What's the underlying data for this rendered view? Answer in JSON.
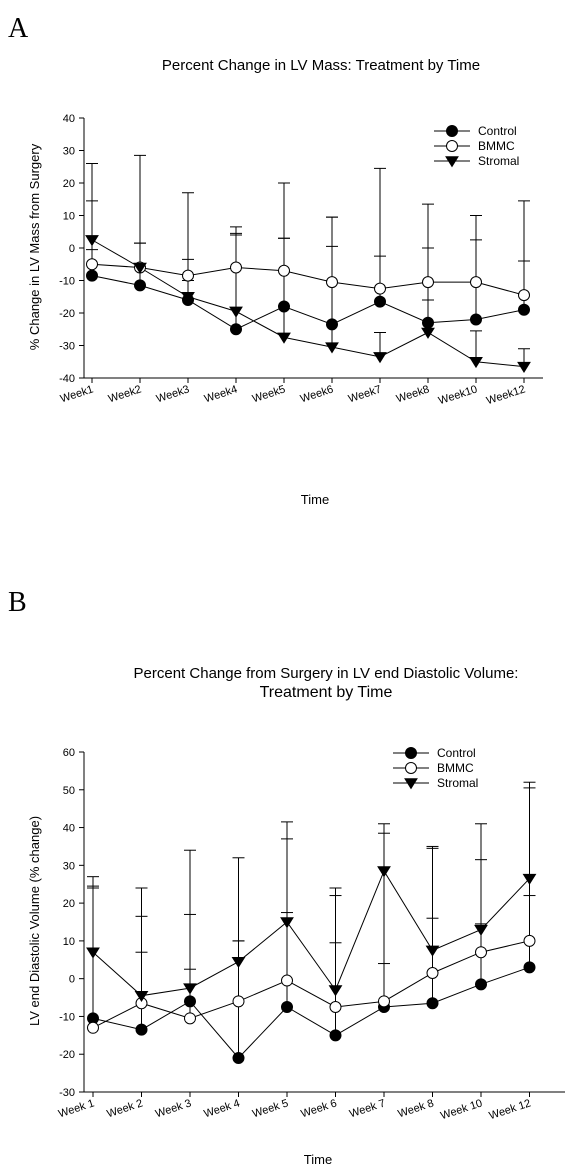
{
  "panels": [
    {
      "letter": "A"
    },
    {
      "letter": "B"
    }
  ],
  "chart_data": [
    {
      "type": "line",
      "title": "Percent Change in LV Mass: Treatment by Time",
      "xlabel": "Time",
      "ylabel": "% Change in LV Mass from Surgery",
      "categories": [
        "Week1",
        "Week2",
        "Week3",
        "Week4",
        "Week5",
        "Week6",
        "Week7",
        "Week8",
        "Week10",
        "Week12"
      ],
      "ylim": [
        -40,
        40
      ],
      "yticks": [
        -40,
        -30,
        -20,
        -10,
        0,
        10,
        20,
        30,
        40
      ],
      "grid": false,
      "legend_position": "top-right",
      "series": [
        {
          "name": "Control",
          "marker": "filled-circle",
          "values": [
            -8.5,
            -11.5,
            -16,
            -25,
            -18,
            -23.5,
            -16.5,
            -23,
            -22,
            -19
          ],
          "error_upper": [
            14.5,
            1.5,
            -10,
            4.5,
            3,
            0.5,
            -2.5,
            0,
            2.5,
            -4
          ]
        },
        {
          "name": "BMMC",
          "marker": "open-circle",
          "values": [
            -5,
            -6,
            -8.5,
            -6,
            -7,
            -10.5,
            -12.5,
            -10.5,
            -10.5,
            -14.5
          ],
          "error_upper": [
            -0.5,
            1.5,
            -3.5,
            6.5,
            3,
            9.5,
            24.5,
            13.5,
            10,
            14.5
          ]
        },
        {
          "name": "Stromal",
          "marker": "filled-triangle-down",
          "values": [
            2.5,
            -6,
            -15,
            -19.5,
            -27.5,
            -30.5,
            -33.5,
            -26,
            -35,
            -36.5
          ],
          "error_upper": [
            26,
            28.5,
            17,
            4,
            20,
            9.5,
            -26,
            -16,
            -25.5,
            -31
          ]
        }
      ]
    },
    {
      "type": "line",
      "title": "Percent Change from Surgery in LV end Diastolic Volume:",
      "subtitle": "Treatment by Time",
      "xlabel": "Time",
      "ylabel": "LV end Diastolic Volume  (% change)",
      "categories": [
        "Week 1",
        "Week 2",
        "Week 3",
        "Week 4",
        "Week 5",
        "Week 6",
        "Week 7",
        "Week 8",
        "Week 10",
        "Week 12"
      ],
      "ylim": [
        -30,
        60
      ],
      "yticks": [
        -30,
        -20,
        -10,
        0,
        10,
        20,
        30,
        40,
        50,
        60
      ],
      "grid": false,
      "legend_position": "top-right",
      "series": [
        {
          "name": "Control",
          "marker": "filled-circle",
          "values": [
            -10.5,
            -13.5,
            -6,
            -21,
            -7.5,
            -15,
            -7.5,
            -6.5,
            -1.5,
            3
          ],
          "error_upper": [
            24,
            7,
            2.5,
            10,
            17.5,
            9.5,
            4,
            16,
            14.5,
            22
          ]
        },
        {
          "name": "BMMC",
          "marker": "open-circle",
          "values": [
            -13,
            -6.5,
            -10.5,
            -6,
            -0.5,
            -7.5,
            -6,
            1.5,
            7,
            10
          ],
          "error_upper": [
            24.5,
            16.5,
            17,
            10,
            37,
            22,
            38.5,
            34.5,
            31.5,
            50.5
          ]
        },
        {
          "name": "Stromal",
          "marker": "filled-triangle-down",
          "values": [
            7,
            -4.5,
            -2.5,
            4.5,
            15,
            -3,
            28.5,
            7.5,
            13,
            26.5
          ],
          "error_upper": [
            27,
            24,
            34,
            32,
            41.5,
            24,
            41,
            35,
            41,
            52
          ]
        }
      ]
    }
  ]
}
